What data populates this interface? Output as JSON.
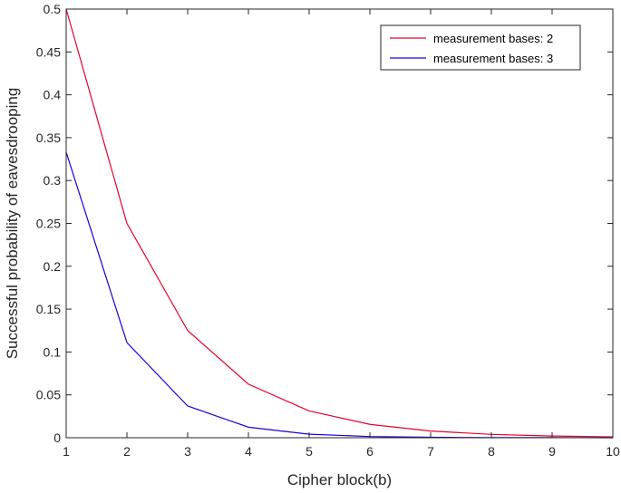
{
  "chart_data": {
    "type": "line",
    "title": "",
    "xlabel": "Cipher block(b)",
    "ylabel": "Successful probability of eavesdrooping",
    "x": [
      1,
      2,
      3,
      4,
      5,
      6,
      7,
      8,
      9,
      10
    ],
    "xlim": [
      1,
      10
    ],
    "ylim": [
      0,
      0.5
    ],
    "xticks": [
      "1",
      "2",
      "3",
      "4",
      "5",
      "6",
      "7",
      "8",
      "9",
      "10"
    ],
    "yticks": [
      "0",
      "0.05",
      "0.1",
      "0.15",
      "0.2",
      "0.25",
      "0.3",
      "0.35",
      "0.4",
      "0.45",
      "0.5"
    ],
    "grid": false,
    "legend_position": "top-right",
    "series": [
      {
        "name": "measurement bases: 2",
        "color": "#e8002a",
        "values": [
          0.5,
          0.25,
          0.125,
          0.0625,
          0.03125,
          0.015625,
          0.0078,
          0.0039,
          0.002,
          0.001
        ]
      },
      {
        "name": "measurement bases: 3",
        "color": "#1c00d8",
        "values": [
          0.333,
          0.111,
          0.037,
          0.0123,
          0.0041,
          0.0014,
          0.0005,
          0.0002,
          0.0001,
          0.0
        ]
      }
    ]
  }
}
